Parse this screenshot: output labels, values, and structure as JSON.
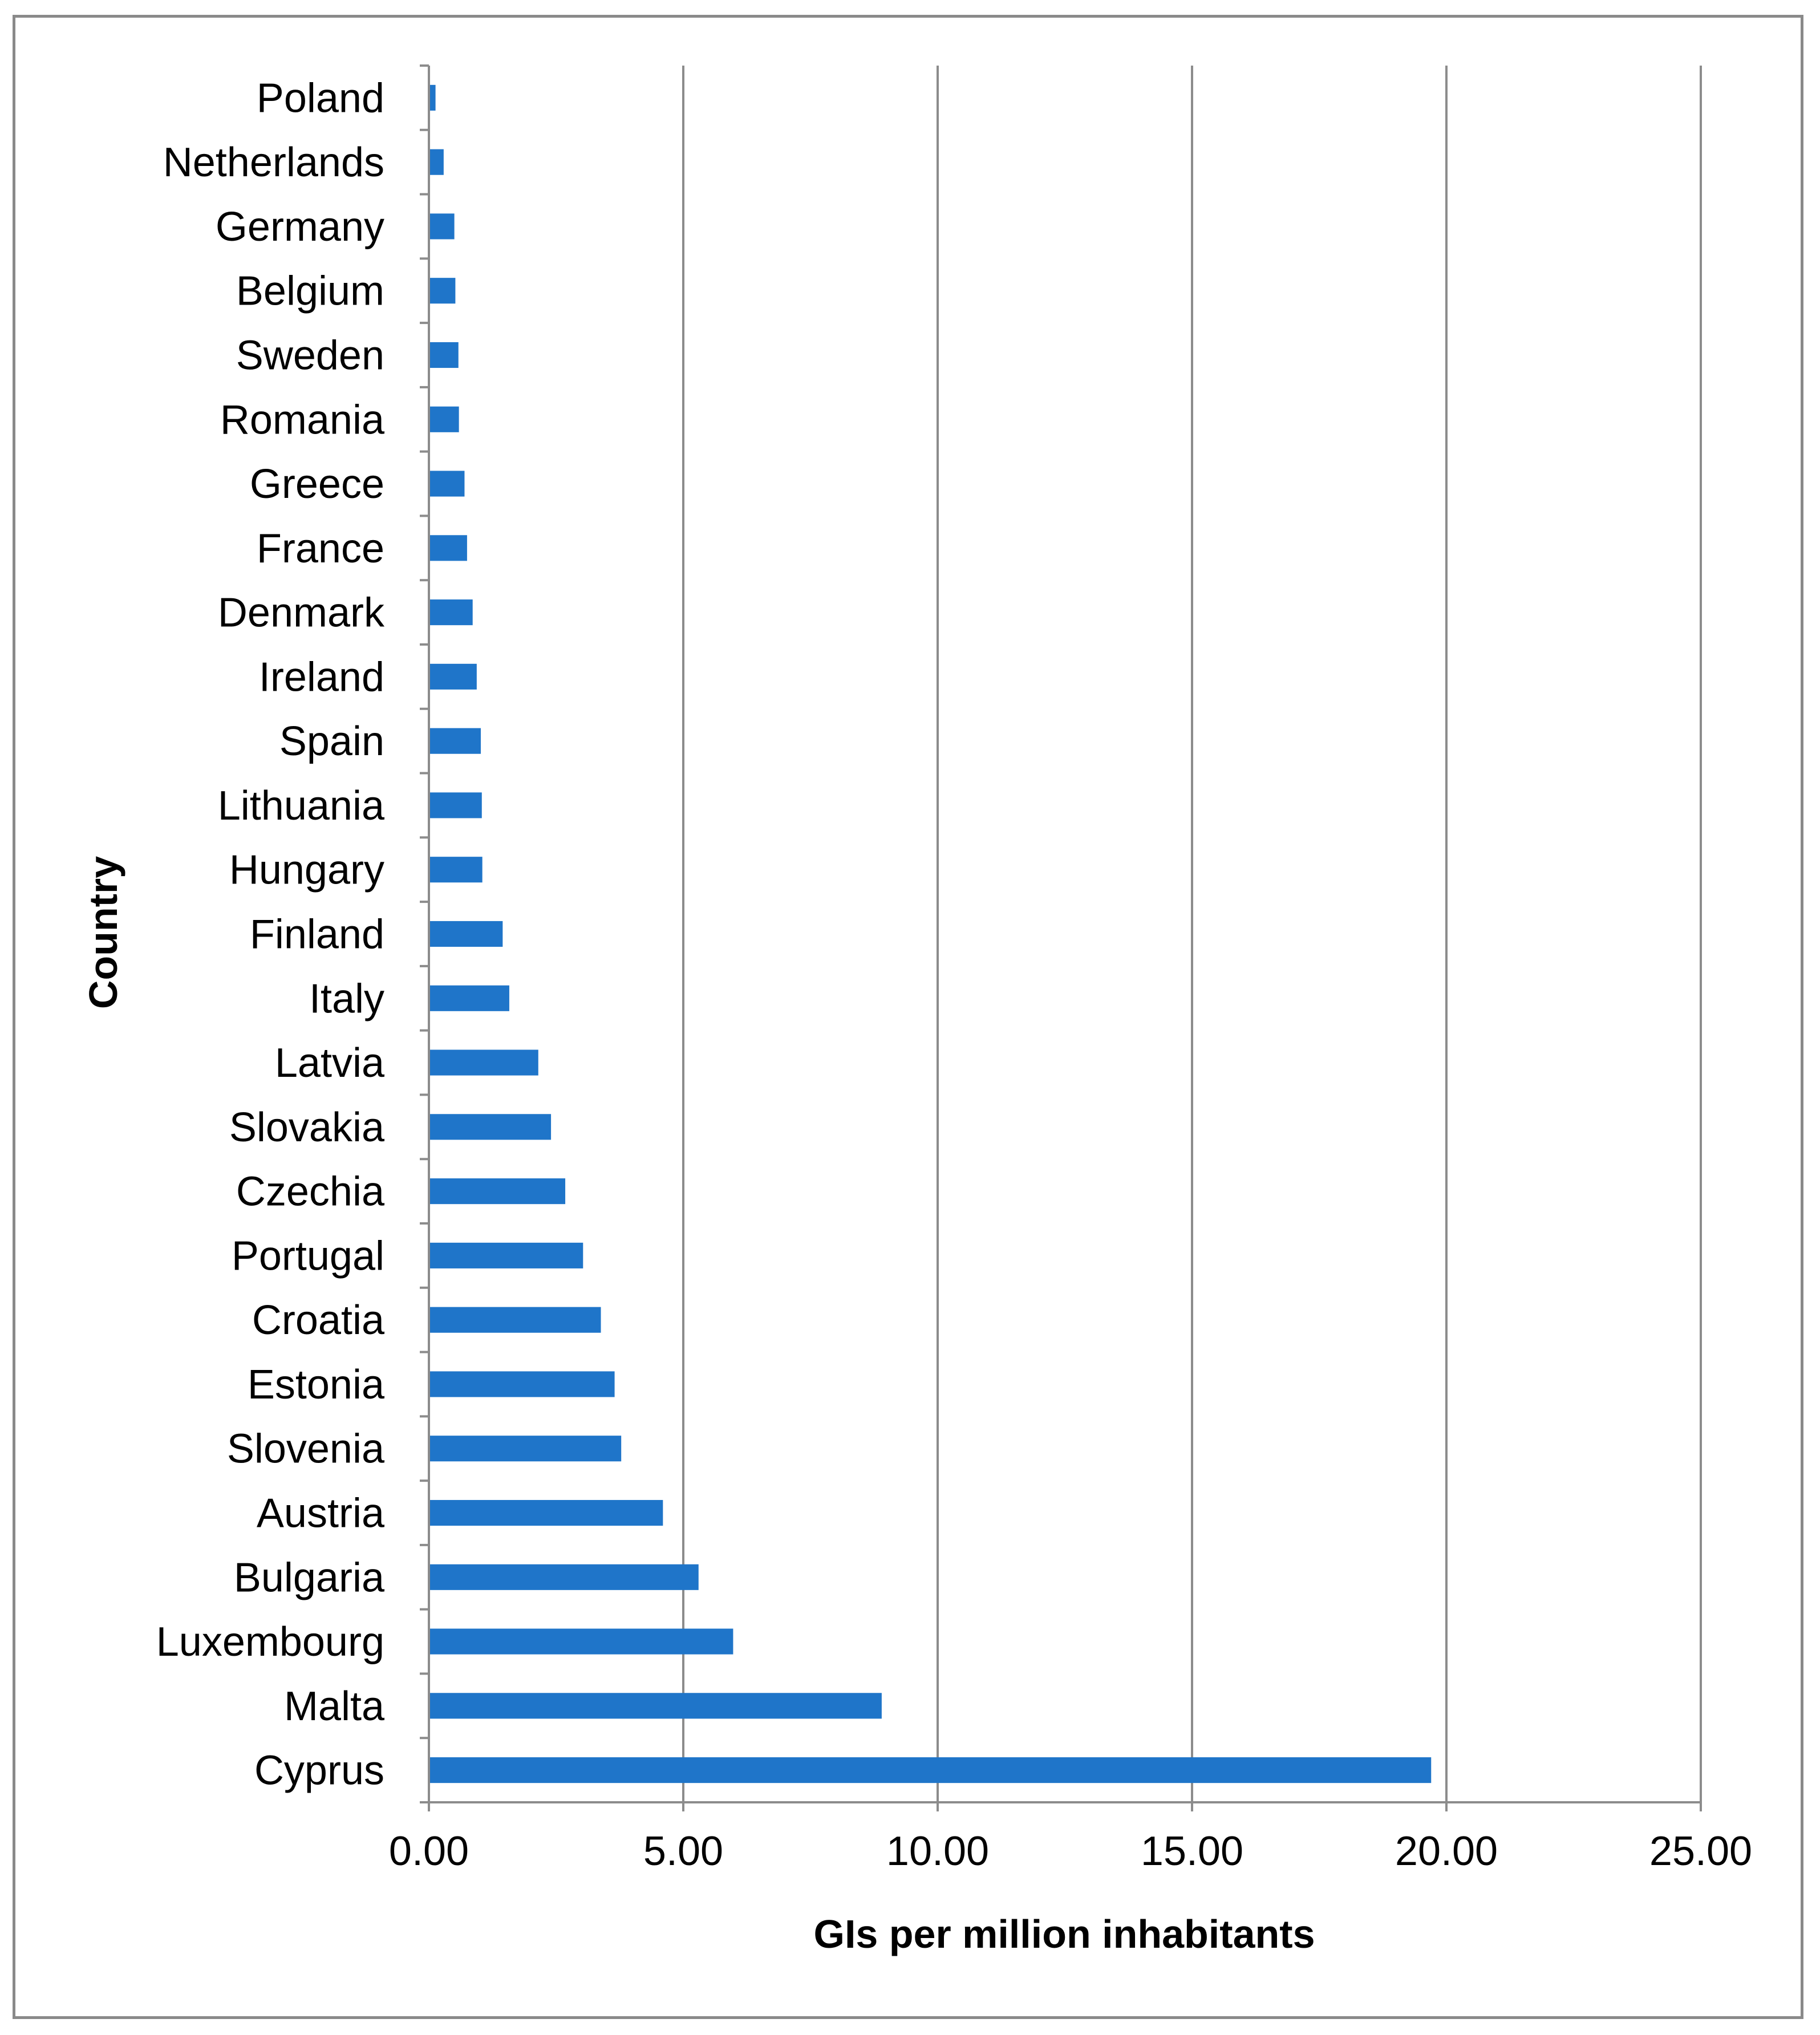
{
  "chart_data": {
    "type": "bar",
    "orientation": "horizontal",
    "title": "",
    "xlabel": "GIs per million inhabitants",
    "ylabel": "Country",
    "xlim": [
      0,
      25
    ],
    "x_ticks": [
      "0.00",
      "5.00",
      "10.00",
      "15.00",
      "20.00",
      "25.00"
    ],
    "grid": "vertical",
    "bar_color": "#1f75c9",
    "categories": [
      "Poland",
      "Netherlands",
      "Germany",
      "Belgium",
      "Sweden",
      "Romania",
      "Greece",
      "France",
      "Denmark",
      "Ireland",
      "Spain",
      "Lithuania",
      "Hungary",
      "Finland",
      "Italy",
      "Latvia",
      "Slovakia",
      "Czechia",
      "Portugal",
      "Croatia",
      "Estonia",
      "Slovenia",
      "Austria",
      "Bulgaria",
      "Luxembourg",
      "Malta",
      "Cyprus"
    ],
    "values": [
      0.13,
      0.29,
      0.5,
      0.52,
      0.58,
      0.59,
      0.7,
      0.75,
      0.86,
      0.94,
      1.02,
      1.04,
      1.05,
      1.45,
      1.58,
      2.15,
      2.4,
      2.68,
      3.03,
      3.38,
      3.65,
      3.78,
      4.6,
      5.3,
      5.98,
      8.9,
      19.7
    ]
  }
}
